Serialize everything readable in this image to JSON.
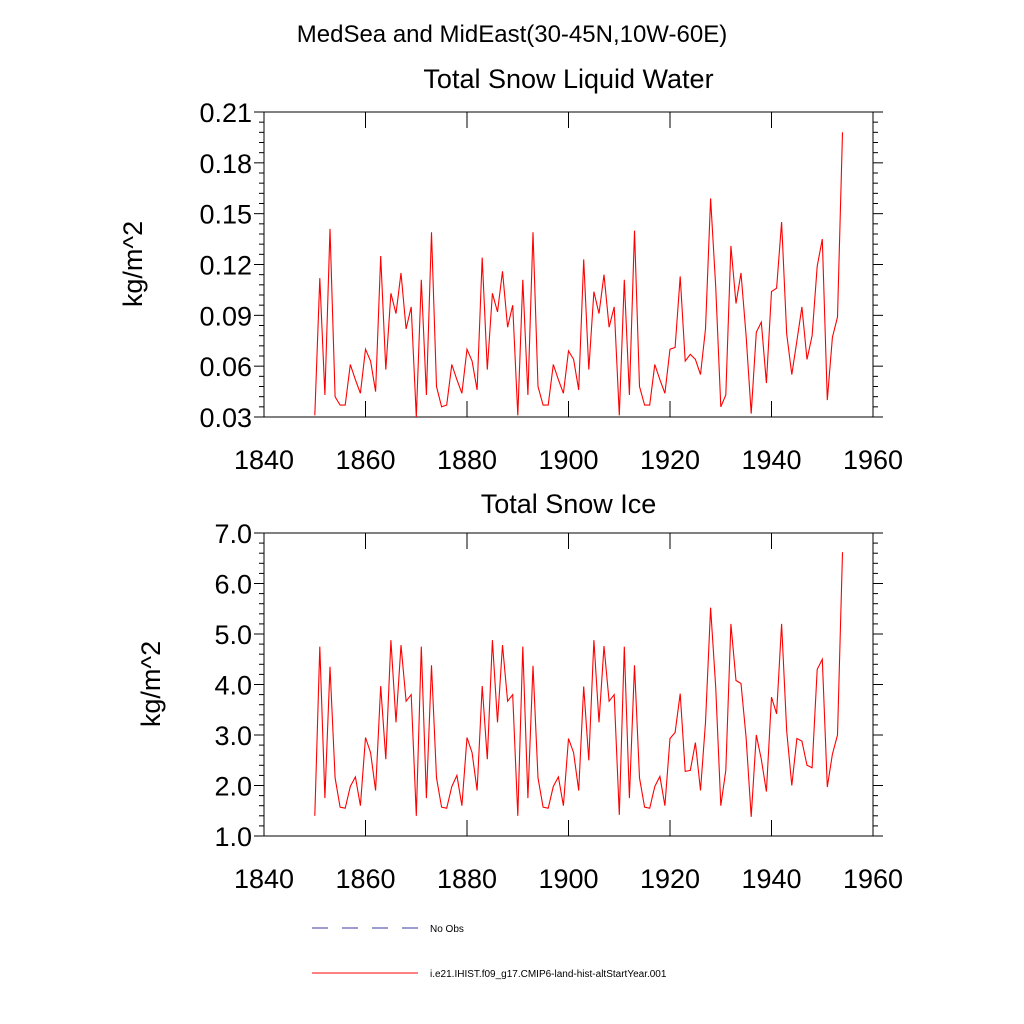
{
  "figure_title": "MedSea and MidEast(30-45N,10W-60E)",
  "legend": [
    {
      "label": "No Obs",
      "color": "#3a3aa0",
      "style": "dashed"
    },
    {
      "label": "i.e21.IHIST.f09_g17.CMIP6-land-hist-altStartYear.001",
      "color": "#ff0000",
      "style": "solid"
    }
  ],
  "chart_data": [
    {
      "type": "line",
      "title": "Total Snow Liquid Water",
      "xlabel": "",
      "ylabel": "kg/m^2",
      "xlim": [
        1840,
        1960
      ],
      "ylim": [
        0.03,
        0.21
      ],
      "x_ticks": [
        1840,
        1860,
        1880,
        1900,
        1920,
        1940,
        1960
      ],
      "x_tick_labels": [
        "1840",
        "1860",
        "1880",
        "1900",
        "1920",
        "1940",
        "1960"
      ],
      "y_ticks": [
        0.03,
        0.06,
        0.09,
        0.12,
        0.15,
        0.18,
        0.21
      ],
      "y_tick_labels": [
        "0.03",
        "0.06",
        "0.09",
        "0.12",
        "0.15",
        "0.18",
        "0.21"
      ],
      "grid": false,
      "series": [
        {
          "name": "i.e21.IHIST.f09_g17.CMIP6-land-hist-altStartYear.001",
          "color": "#ff0000",
          "x": [
            1850,
            1851,
            1852,
            1853,
            1854,
            1855,
            1856,
            1857,
            1858,
            1859,
            1860,
            1861,
            1862,
            1863,
            1864,
            1865,
            1866,
            1867,
            1868,
            1869,
            1870,
            1871,
            1872,
            1873,
            1874,
            1875,
            1876,
            1877,
            1878,
            1879,
            1880,
            1881,
            1882,
            1883,
            1884,
            1885,
            1886,
            1887,
            1888,
            1889,
            1890,
            1891,
            1892,
            1893,
            1894,
            1895,
            1896,
            1897,
            1898,
            1899,
            1900,
            1901,
            1902,
            1903,
            1904,
            1905,
            1906,
            1907,
            1908,
            1909,
            1910,
            1911,
            1912,
            1913,
            1914,
            1915,
            1916,
            1917,
            1918,
            1919,
            1920,
            1921,
            1922,
            1923,
            1924,
            1925,
            1926,
            1927,
            1928,
            1929,
            1930,
            1931,
            1932,
            1933,
            1934,
            1935,
            1936,
            1937,
            1938,
            1939,
            1940,
            1941,
            1942,
            1943,
            1944,
            1945,
            1946,
            1947,
            1948,
            1949,
            1950,
            1951,
            1952,
            1953,
            1954
          ],
          "values": [
            0.031,
            0.112,
            0.043,
            0.141,
            0.042,
            0.037,
            0.037,
            0.061,
            0.052,
            0.044,
            0.07,
            0.063,
            0.045,
            0.125,
            0.058,
            0.103,
            0.091,
            0.115,
            0.082,
            0.095,
            0.03,
            0.111,
            0.043,
            0.139,
            0.048,
            0.036,
            0.037,
            0.061,
            0.052,
            0.044,
            0.07,
            0.063,
            0.046,
            0.124,
            0.058,
            0.103,
            0.092,
            0.116,
            0.083,
            0.096,
            0.031,
            0.111,
            0.043,
            0.139,
            0.048,
            0.037,
            0.037,
            0.061,
            0.052,
            0.044,
            0.069,
            0.064,
            0.046,
            0.123,
            0.058,
            0.104,
            0.091,
            0.114,
            0.083,
            0.095,
            0.031,
            0.111,
            0.043,
            0.14,
            0.048,
            0.037,
            0.037,
            0.061,
            0.052,
            0.044,
            0.07,
            0.071,
            0.113,
            0.063,
            0.067,
            0.064,
            0.055,
            0.082,
            0.159,
            0.107,
            0.036,
            0.043,
            0.131,
            0.097,
            0.115,
            0.078,
            0.032,
            0.08,
            0.086,
            0.05,
            0.104,
            0.106,
            0.145,
            0.079,
            0.055,
            0.075,
            0.095,
            0.064,
            0.078,
            0.119,
            0.135,
            0.04,
            0.077,
            0.089,
            0.198
          ]
        }
      ]
    },
    {
      "type": "line",
      "title": "Total Snow Ice",
      "xlabel": "",
      "ylabel": "kg/m^2",
      "xlim": [
        1840,
        1960
      ],
      "ylim": [
        1.0,
        7.0
      ],
      "x_ticks": [
        1840,
        1860,
        1880,
        1900,
        1920,
        1940,
        1960
      ],
      "x_tick_labels": [
        "1840",
        "1860",
        "1880",
        "1900",
        "1920",
        "1940",
        "1960"
      ],
      "y_ticks": [
        1.0,
        2.0,
        3.0,
        4.0,
        5.0,
        6.0,
        7.0
      ],
      "y_tick_labels": [
        "1.0",
        "2.0",
        "3.0",
        "4.0",
        "5.0",
        "6.0",
        "7.0"
      ],
      "grid": false,
      "series": [
        {
          "name": "i.e21.IHIST.f09_g17.CMIP6-land-hist-altStartYear.001",
          "color": "#ff0000",
          "x": [
            1850,
            1851,
            1852,
            1853,
            1854,
            1855,
            1856,
            1857,
            1858,
            1859,
            1860,
            1861,
            1862,
            1863,
            1864,
            1865,
            1866,
            1867,
            1868,
            1869,
            1870,
            1871,
            1872,
            1873,
            1874,
            1875,
            1876,
            1877,
            1878,
            1879,
            1880,
            1881,
            1882,
            1883,
            1884,
            1885,
            1886,
            1887,
            1888,
            1889,
            1890,
            1891,
            1892,
            1893,
            1894,
            1895,
            1896,
            1897,
            1898,
            1899,
            1900,
            1901,
            1902,
            1903,
            1904,
            1905,
            1906,
            1907,
            1908,
            1909,
            1910,
            1911,
            1912,
            1913,
            1914,
            1915,
            1916,
            1917,
            1918,
            1919,
            1920,
            1921,
            1922,
            1923,
            1924,
            1925,
            1926,
            1927,
            1928,
            1929,
            1930,
            1931,
            1932,
            1933,
            1934,
            1935,
            1936,
            1937,
            1938,
            1939,
            1940,
            1941,
            1942,
            1943,
            1944,
            1945,
            1946,
            1947,
            1948,
            1949,
            1950,
            1951,
            1952,
            1953,
            1954
          ],
          "values": [
            1.4,
            4.75,
            1.75,
            4.35,
            2.15,
            1.57,
            1.55,
            1.98,
            2.17,
            1.6,
            2.95,
            2.65,
            1.9,
            3.97,
            2.52,
            4.88,
            3.25,
            4.78,
            3.67,
            3.8,
            1.4,
            4.75,
            1.75,
            4.38,
            2.15,
            1.57,
            1.55,
            1.98,
            2.2,
            1.6,
            2.95,
            2.65,
            1.9,
            3.97,
            2.52,
            4.88,
            3.25,
            4.78,
            3.67,
            3.8,
            1.4,
            4.75,
            1.75,
            4.37,
            2.15,
            1.57,
            1.55,
            1.98,
            2.17,
            1.6,
            2.93,
            2.65,
            1.9,
            3.96,
            2.5,
            4.88,
            3.25,
            4.76,
            3.67,
            3.8,
            1.42,
            4.75,
            1.75,
            4.38,
            2.15,
            1.57,
            1.55,
            1.98,
            2.18,
            1.6,
            2.93,
            3.05,
            3.82,
            2.28,
            2.3,
            2.85,
            1.9,
            3.25,
            5.52,
            3.95,
            1.6,
            2.3,
            5.2,
            4.08,
            4.02,
            2.95,
            1.38,
            3.0,
            2.52,
            1.88,
            3.75,
            3.42,
            5.2,
            3.08,
            2.0,
            2.93,
            2.88,
            2.4,
            2.35,
            4.3,
            4.5,
            1.97,
            2.62,
            3.0,
            6.62
          ]
        }
      ]
    }
  ]
}
